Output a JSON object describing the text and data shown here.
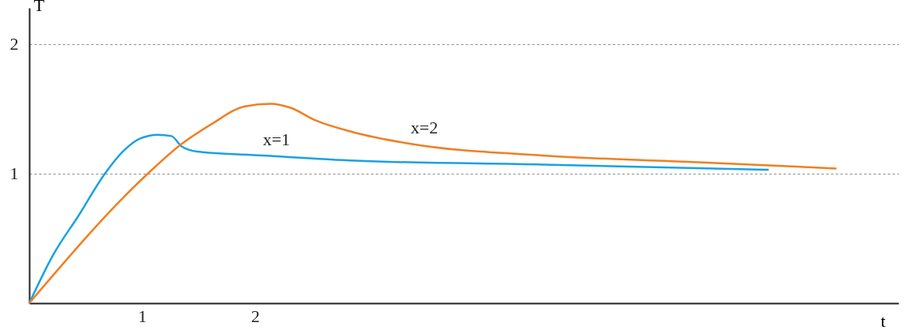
{
  "chart_data": {
    "type": "line",
    "xlabel": "t",
    "ylabel": "T",
    "xlim": [
      0,
      7.7
    ],
    "ylim": [
      0,
      2.28
    ],
    "xticks": [
      1,
      2
    ],
    "yticks": [
      1,
      2
    ],
    "grid": "y",
    "line_style": "solid",
    "series": [
      {
        "name": "x=1",
        "color": "#1ba1e2",
        "x": [
          0,
          0.21,
          0.44,
          0.67,
          0.84,
          0.98,
          1.14,
          1.26,
          1.35,
          1.49,
          2.07,
          2.89,
          4.55,
          6.55
        ],
        "values": [
          0,
          0.37,
          0.68,
          1.0,
          1.18,
          1.27,
          1.3,
          1.29,
          1.21,
          1.17,
          1.14,
          1.1,
          1.07,
          1.03
        ]
      },
      {
        "name": "x=2",
        "color": "#f07f22",
        "x": [
          0,
          1.05,
          1.35,
          1.61,
          1.91,
          2.14,
          2.31,
          2.54,
          2.87,
          3.38,
          4.55,
          5.88,
          7.15
        ],
        "values": [
          0,
          1.0,
          1.23,
          1.38,
          1.52,
          1.54,
          1.51,
          1.41,
          1.32,
          1.23,
          1.14,
          1.09,
          1.04
        ]
      }
    ]
  }
}
